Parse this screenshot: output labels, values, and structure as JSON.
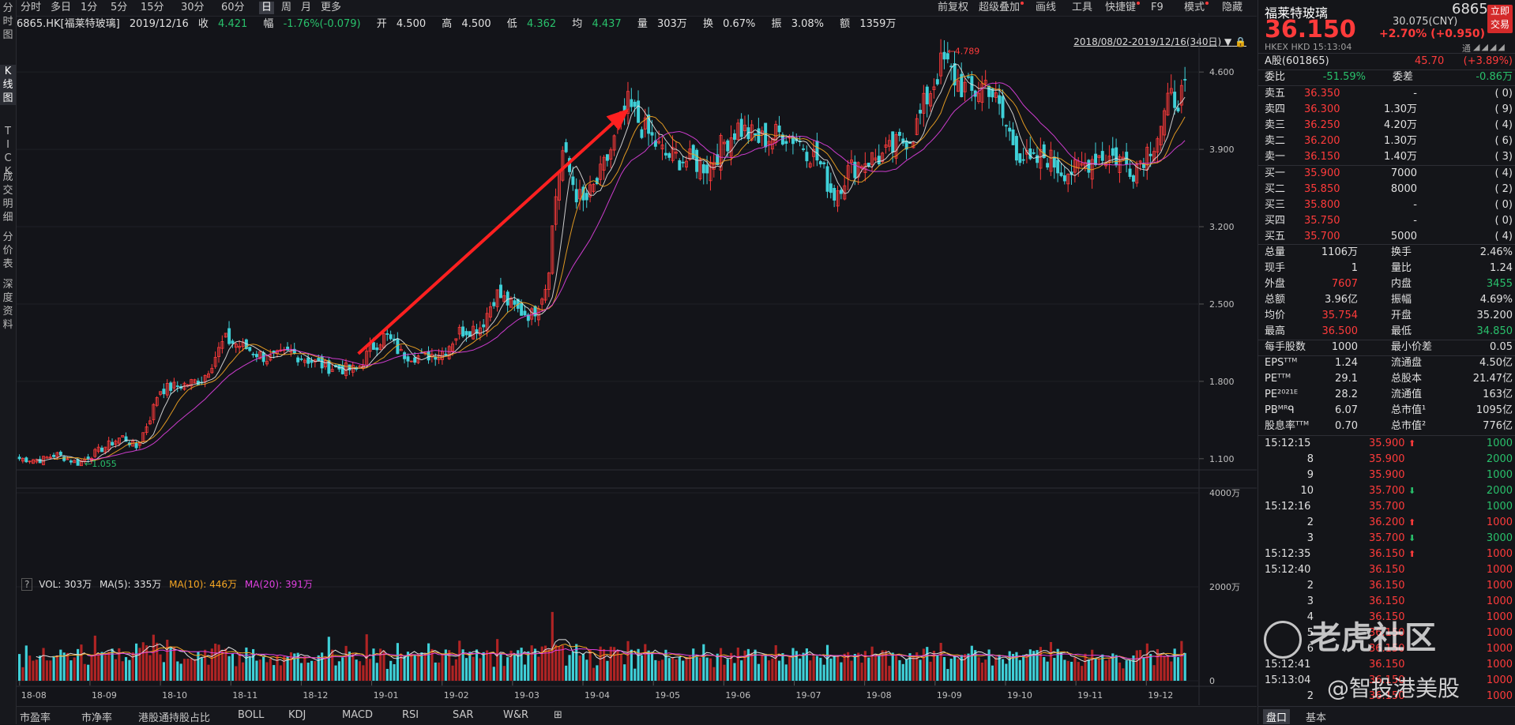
{
  "left_tabs": [
    "分时图",
    "K线图",
    "TICK",
    "成交明细",
    "分价表",
    "深度资料"
  ],
  "toolbar": {
    "periods": [
      "分时",
      "多日",
      "1分",
      "5分",
      "15分",
      "30分",
      "60分",
      "日",
      "周",
      "月",
      "更多"
    ],
    "active": "日",
    "right": [
      "前复权",
      "超级叠加",
      "画线",
      "工具",
      "快捷键",
      "F9",
      "模式",
      "隐藏"
    ]
  },
  "info": {
    "symbol": "6865.HK[福莱特玻璃]",
    "date": "2019/12/16",
    "close_label": "收",
    "close": "4.421",
    "amp_label": "幅",
    "amp": "-1.76%(-0.079)",
    "open_label": "开",
    "open": "4.500",
    "high_label": "高",
    "high": "4.500",
    "low_label": "低",
    "low": "4.362",
    "avg_label": "均",
    "avg": "4.437",
    "vol_label": "量",
    "vol": "303万",
    "turn_label": "换",
    "turn": "0.67%",
    "swing_label": "振",
    "swing": "3.08%",
    "amount_label": "额",
    "amount": "1359万",
    "range": "2018/08/02-2019/12/16(340日)"
  },
  "chart_data": {
    "type": "candlestick",
    "price_axis": {
      "ticks": [
        "4.600",
        "3.900",
        "3.200",
        "2.500",
        "1.800",
        "1.100"
      ],
      "range": [
        1.02,
        4.88
      ]
    },
    "x_ticks": [
      "18-08",
      "18-09",
      "18-10",
      "18-11",
      "18-12",
      "19-01",
      "19-02",
      "19-03",
      "19-04",
      "19-05",
      "19-06",
      "19-07",
      "19-08",
      "19-09",
      "19-10",
      "19-11",
      "19-12"
    ],
    "annotations": {
      "max_label": "4.789",
      "min_label": "1.055"
    },
    "ohlc_path": [
      [
        0,
        1.1
      ],
      [
        15,
        1.09
      ],
      [
        25,
        1.14
      ],
      [
        40,
        1.06
      ],
      [
        55,
        1.18
      ],
      [
        70,
        1.3
      ],
      [
        80,
        1.2
      ],
      [
        90,
        1.5
      ],
      [
        95,
        1.72
      ],
      [
        115,
        1.78
      ],
      [
        125,
        1.82
      ],
      [
        140,
        2.18
      ],
      [
        155,
        2.1
      ],
      [
        170,
        2.0
      ],
      [
        185,
        2.06
      ],
      [
        200,
        1.98
      ],
      [
        210,
        1.93
      ],
      [
        230,
        1.9
      ],
      [
        240,
        2.1
      ],
      [
        250,
        2.22
      ],
      [
        260,
        2.05
      ],
      [
        275,
        2.02
      ],
      [
        290,
        2.08
      ],
      [
        300,
        2.25
      ],
      [
        315,
        2.3
      ],
      [
        325,
        2.6
      ],
      [
        340,
        2.44
      ],
      [
        350,
        2.4
      ],
      [
        360,
        2.7
      ],
      [
        365,
        3.4
      ],
      [
        370,
        3.9
      ],
      [
        380,
        3.5
      ],
      [
        385,
        3.4
      ],
      [
        395,
        3.62
      ],
      [
        405,
        3.95
      ],
      [
        415,
        4.3
      ],
      [
        425,
        4.1
      ],
      [
        440,
        3.85
      ],
      [
        455,
        3.8
      ],
      [
        470,
        3.75
      ],
      [
        480,
        3.95
      ],
      [
        490,
        4.1
      ],
      [
        505,
        3.98
      ],
      [
        520,
        4.05
      ],
      [
        530,
        4.0
      ],
      [
        545,
        3.8
      ],
      [
        555,
        3.48
      ],
      [
        565,
        3.7
      ],
      [
        575,
        3.8
      ],
      [
        590,
        3.84
      ],
      [
        600,
        3.95
      ],
      [
        610,
        4.05
      ],
      [
        620,
        4.4
      ],
      [
        630,
        4.7
      ],
      [
        640,
        4.5
      ],
      [
        650,
        4.4
      ],
      [
        660,
        4.52
      ],
      [
        670,
        4.2
      ],
      [
        680,
        3.9
      ],
      [
        690,
        3.75
      ],
      [
        700,
        3.85
      ],
      [
        710,
        3.72
      ],
      [
        720,
        3.7
      ],
      [
        735,
        3.85
      ],
      [
        750,
        3.82
      ],
      [
        760,
        3.72
      ],
      [
        775,
        4.0
      ],
      [
        785,
        4.35
      ],
      [
        795,
        4.4
      ]
    ],
    "volume": {
      "label": "VOL: 303万",
      "ma5": "MA(5): 335万",
      "ma10": "MA(10): 446万",
      "ma20": "MA(20): 391万",
      "ticks": [
        "4000万",
        "2000万",
        "0"
      ]
    }
  },
  "bottom_tabs": [
    "市盈率",
    "市净率",
    "港股通持股占比",
    "BOLL",
    "KDJ",
    "MACD",
    "RSI",
    "SAR",
    "W&R"
  ],
  "rpanel": {
    "name": "福莱特玻璃",
    "code": "6865",
    "price": "36.150",
    "cny": "30.075(CNY)",
    "change": "+2.70% (+0.950)",
    "exchange": "HKEX HKD 15:13:04",
    "tong": "通",
    "trade_btn": [
      "立即",
      "交易"
    ],
    "a_share": {
      "label": "A股(601865)",
      "price": "45.70",
      "pct": "(+3.89%)"
    },
    "weibi": {
      "label": "委比",
      "value": "-51.59%",
      "label2": "委差",
      "value2": "-0.86万"
    },
    "asks": [
      {
        "label": "卖五",
        "price": "36.350",
        "vol": "-",
        "cnt": "0"
      },
      {
        "label": "卖四",
        "price": "36.300",
        "vol": "1.30万",
        "cnt": "9"
      },
      {
        "label": "卖三",
        "price": "36.250",
        "vol": "4.20万",
        "cnt": "4"
      },
      {
        "label": "卖二",
        "price": "36.200",
        "vol": "1.30万",
        "cnt": "6"
      },
      {
        "label": "卖一",
        "price": "36.150",
        "vol": "1.40万",
        "cnt": "3"
      }
    ],
    "bids": [
      {
        "label": "买一",
        "price": "35.900",
        "vol": "7000",
        "cnt": "4"
      },
      {
        "label": "买二",
        "price": "35.850",
        "vol": "8000",
        "cnt": "2"
      },
      {
        "label": "买三",
        "price": "35.800",
        "vol": "-",
        "cnt": "0"
      },
      {
        "label": "买四",
        "price": "35.750",
        "vol": "-",
        "cnt": "0"
      },
      {
        "label": "买五",
        "price": "35.700",
        "vol": "5000",
        "cnt": "4"
      }
    ],
    "stats": [
      {
        "l1": "总量",
        "v1": "1106万",
        "c1": "wh",
        "l2": "换手",
        "v2": "2.46%",
        "c2": "wh"
      },
      {
        "l1": "现手",
        "v1": "1",
        "c1": "wh",
        "l2": "量比",
        "v2": "1.24",
        "c2": "wh"
      },
      {
        "l1": "外盘",
        "v1": "7607",
        "c1": "up",
        "l2": "内盘",
        "v2": "3455",
        "c2": "dn"
      },
      {
        "l1": "总额",
        "v1": "3.96亿",
        "c1": "wh",
        "l2": "振幅",
        "v2": "4.69%",
        "c2": "wh"
      },
      {
        "l1": "均价",
        "v1": "35.754",
        "c1": "up",
        "l2": "开盘",
        "v2": "35.200",
        "c2": "wh"
      },
      {
        "l1": "最高",
        "v1": "36.500",
        "c1": "up",
        "l2": "最低",
        "v2": "34.850",
        "c2": "dn"
      },
      {
        "l1": "每手股数",
        "v1": "1000",
        "c1": "wh",
        "l2": "最小价差",
        "v2": "0.05",
        "c2": "wh"
      },
      {
        "l1": "EPSᵀᵀᴹ",
        "v1": "1.24",
        "c1": "wh",
        "l2": "流通盘",
        "v2": "4.50亿",
        "c2": "wh"
      },
      {
        "l1": "PEᵀᵀᴹ",
        "v1": "29.1",
        "c1": "wh",
        "l2": "总股本",
        "v2": "21.47亿",
        "c2": "wh"
      },
      {
        "l1": "PE²⁰²¹ᴱ",
        "v1": "28.2",
        "c1": "wh",
        "l2": "流通值",
        "v2": "163亿",
        "c2": "wh"
      },
      {
        "l1": "PBᴹᴿᑫ",
        "v1": "6.07",
        "c1": "wh",
        "l2": "总市值¹",
        "v2": "1095亿",
        "c2": "wh"
      },
      {
        "l1": "股息率ᵀᵀᴹ",
        "v1": "0.70",
        "c1": "wh",
        "l2": "总市值²",
        "v2": "776亿",
        "c2": "wh"
      }
    ],
    "ticks": [
      {
        "t": "15:12:15",
        "p": "35.900",
        "a": "up",
        "v": "1000",
        "vc": "dn"
      },
      {
        "t": "8",
        "p": "35.900",
        "a": "",
        "v": "2000",
        "vc": "dn"
      },
      {
        "t": "9",
        "p": "35.900",
        "a": "",
        "v": "1000",
        "vc": "dn"
      },
      {
        "t": "10",
        "p": "35.700",
        "a": "dn",
        "v": "2000",
        "vc": "dn"
      },
      {
        "t": "15:12:16",
        "p": "35.700",
        "a": "",
        "v": "1000",
        "vc": "dn"
      },
      {
        "t": "2",
        "p": "36.200",
        "a": "up",
        "v": "1000",
        "vc": "up"
      },
      {
        "t": "3",
        "p": "35.700",
        "a": "dn",
        "v": "3000",
        "vc": "dn"
      },
      {
        "t": "15:12:35",
        "p": "36.150",
        "a": "up",
        "v": "1000",
        "vc": "up"
      },
      {
        "t": "15:12:40",
        "p": "36.150",
        "a": "",
        "v": "1000",
        "vc": "up"
      },
      {
        "t": "2",
        "p": "36.150",
        "a": "",
        "v": "1000",
        "vc": "up"
      },
      {
        "t": "3",
        "p": "36.150",
        "a": "",
        "v": "1000",
        "vc": "up"
      },
      {
        "t": "4",
        "p": "36.150",
        "a": "",
        "v": "1000",
        "vc": "up"
      },
      {
        "t": "5",
        "p": "36.150",
        "a": "",
        "v": "1000",
        "vc": "up"
      },
      {
        "t": "6",
        "p": "36.150",
        "a": "",
        "v": "1000",
        "vc": "up"
      },
      {
        "t": "15:12:41",
        "p": "36.150",
        "a": "",
        "v": "1000",
        "vc": "up"
      },
      {
        "t": "15:13:04",
        "p": "36.150",
        "a": "",
        "v": "1000",
        "vc": "up"
      },
      {
        "t": "2",
        "p": "36.150",
        "a": "",
        "v": "1000",
        "vc": "up"
      }
    ],
    "bottom": [
      "盘口",
      "基本"
    ]
  },
  "watermark": {
    "brand": "老虎社区",
    "handle": "@智投港美股"
  }
}
